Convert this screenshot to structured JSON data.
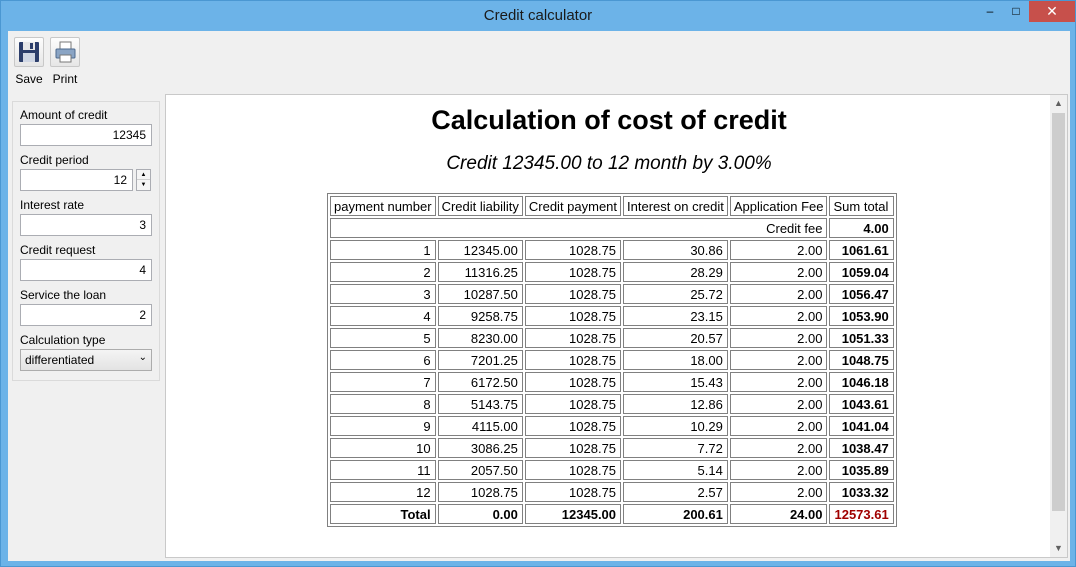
{
  "window": {
    "title": "Credit calculator",
    "minimize": "–",
    "maximize": "□",
    "close": "✕"
  },
  "toolbar": {
    "save_label": "Save",
    "print_label": "Print"
  },
  "form": {
    "amount_label": "Amount of credit",
    "amount_value": "12345",
    "period_label": "Credit period",
    "period_value": "12",
    "rate_label": "Interest rate",
    "rate_value": "3",
    "request_label": "Credit request",
    "request_value": "4",
    "service_label": "Service the loan",
    "service_value": "2",
    "calc_type_label": "Calculation type",
    "calc_type_value": "differentiated"
  },
  "report": {
    "title": "Calculation of cost of credit",
    "subtitle": "Credit 12345.00 to 12 month by 3.00%",
    "headers": [
      "payment number",
      "Credit liability",
      "Credit payment",
      "Interest on credit",
      "Application Fee",
      "Sum total"
    ],
    "credit_fee_label": "Credit fee",
    "credit_fee_value": "4.00",
    "rows": [
      [
        "1",
        "12345.00",
        "1028.75",
        "30.86",
        "2.00",
        "1061.61"
      ],
      [
        "2",
        "11316.25",
        "1028.75",
        "28.29",
        "2.00",
        "1059.04"
      ],
      [
        "3",
        "10287.50",
        "1028.75",
        "25.72",
        "2.00",
        "1056.47"
      ],
      [
        "4",
        "9258.75",
        "1028.75",
        "23.15",
        "2.00",
        "1053.90"
      ],
      [
        "5",
        "8230.00",
        "1028.75",
        "20.57",
        "2.00",
        "1051.33"
      ],
      [
        "6",
        "7201.25",
        "1028.75",
        "18.00",
        "2.00",
        "1048.75"
      ],
      [
        "7",
        "6172.50",
        "1028.75",
        "15.43",
        "2.00",
        "1046.18"
      ],
      [
        "8",
        "5143.75",
        "1028.75",
        "12.86",
        "2.00",
        "1043.61"
      ],
      [
        "9",
        "4115.00",
        "1028.75",
        "10.29",
        "2.00",
        "1041.04"
      ],
      [
        "10",
        "3086.25",
        "1028.75",
        "7.72",
        "2.00",
        "1038.47"
      ],
      [
        "11",
        "2057.50",
        "1028.75",
        "5.14",
        "2.00",
        "1035.89"
      ],
      [
        "12",
        "1028.75",
        "1028.75",
        "2.57",
        "2.00",
        "1033.32"
      ]
    ],
    "total": [
      "Total",
      "0.00",
      "12345.00",
      "200.61",
      "24.00",
      "12573.61"
    ]
  },
  "colors": {
    "total_sum": "#a00000",
    "frame": "#6cb3e8",
    "close_button": "#c7504b"
  },
  "icons": {
    "save": "floppy-disk-icon",
    "print": "printer-icon"
  }
}
